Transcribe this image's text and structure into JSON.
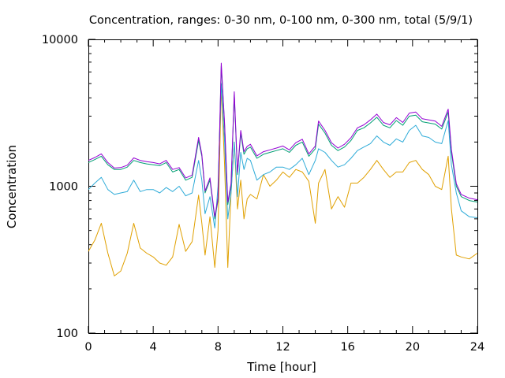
{
  "chart_data": {
    "type": "line",
    "title": "Concentration, ranges: 0-30 nm, 0-100 nm, 0-300 nm, total (5/9/1)",
    "xlabel": "Time [hour]",
    "ylabel": "Concentration",
    "xlim": [
      0,
      24
    ],
    "ylim": [
      100,
      10000
    ],
    "yscale": "log",
    "grid": false,
    "legend": "none",
    "xticks": [
      0,
      4,
      8,
      12,
      16,
      20,
      24
    ],
    "xtick_labels": [
      "0",
      "4",
      "8",
      "12",
      "16",
      "20",
      "24"
    ],
    "yticks": [
      100,
      1000,
      10000
    ],
    "ytick_labels": [
      "100",
      "1000",
      "10000"
    ],
    "series_colors": [
      "#e0a000",
      "#2eabd8",
      "#009e73",
      "#9400d3"
    ],
    "x": [
      0,
      0.4,
      0.8,
      1.2,
      1.6,
      2.0,
      2.4,
      2.8,
      3.2,
      3.6,
      4.0,
      4.4,
      4.8,
      5.2,
      5.6,
      6.0,
      6.4,
      6.8,
      7.0,
      7.2,
      7.5,
      7.8,
      8.0,
      8.2,
      8.4,
      8.6,
      8.8,
      9.0,
      9.2,
      9.4,
      9.6,
      9.8,
      10.0,
      10.4,
      10.8,
      11.2,
      11.6,
      12.0,
      12.4,
      12.8,
      13.2,
      13.6,
      14.0,
      14.2,
      14.6,
      15.0,
      15.4,
      15.8,
      16.2,
      16.6,
      17.0,
      17.4,
      17.8,
      18.2,
      18.6,
      19.0,
      19.4,
      19.8,
      20.2,
      20.6,
      21.0,
      21.4,
      21.8,
      22.2,
      22.4,
      22.7,
      23.0,
      23.5,
      24.0
    ],
    "series": [
      {
        "values": [
          360,
          430,
          560,
          350,
          245,
          265,
          350,
          560,
          380,
          350,
          330,
          300,
          290,
          330,
          550,
          360,
          420,
          870,
          560,
          340,
          620,
          280,
          500,
          4800,
          1400,
          280,
          900,
          2000,
          700,
          1100,
          600,
          820,
          880,
          820,
          1200,
          1000,
          1100,
          1250,
          1150,
          1300,
          1250,
          1080,
          560,
          1050,
          1300,
          700,
          850,
          720,
          1050,
          1050,
          1150,
          1300,
          1500,
          1300,
          1150,
          1250,
          1250,
          1450,
          1500,
          1300,
          1200,
          1000,
          950,
          1600,
          700,
          340,
          330,
          320,
          350
        ]
      },
      {
        "values": [
          950,
          1050,
          1150,
          950,
          880,
          900,
          920,
          1100,
          920,
          950,
          950,
          900,
          980,
          920,
          1000,
          860,
          900,
          1500,
          1100,
          650,
          850,
          520,
          1000,
          5000,
          2000,
          600,
          900,
          2000,
          850,
          1700,
          1300,
          1550,
          1500,
          1100,
          1200,
          1250,
          1350,
          1350,
          1300,
          1400,
          1550,
          1200,
          1500,
          1800,
          1700,
          1500,
          1350,
          1400,
          1550,
          1750,
          1850,
          1950,
          2200,
          2000,
          1900,
          2100,
          2000,
          2400,
          2600,
          2200,
          2150,
          2000,
          1950,
          2800,
          1400,
          900,
          680,
          620,
          610
        ]
      },
      {
        "values": [
          1450,
          1520,
          1600,
          1400,
          1300,
          1300,
          1350,
          1500,
          1450,
          1420,
          1400,
          1380,
          1450,
          1250,
          1300,
          1100,
          1150,
          2050,
          1600,
          900,
          1100,
          600,
          800,
          6600,
          2600,
          750,
          1000,
          4200,
          1200,
          2300,
          1650,
          1800,
          1850,
          1550,
          1650,
          1700,
          1750,
          1800,
          1700,
          1900,
          2000,
          1600,
          1800,
          2650,
          2300,
          1900,
          1750,
          1850,
          2050,
          2400,
          2500,
          2700,
          2950,
          2600,
          2500,
          2800,
          2600,
          3000,
          3050,
          2750,
          2700,
          2650,
          2450,
          3200,
          1700,
          1000,
          850,
          800,
          780
        ]
      },
      {
        "values": [
          1500,
          1570,
          1660,
          1450,
          1330,
          1340,
          1390,
          1560,
          1500,
          1470,
          1450,
          1420,
          1500,
          1300,
          1340,
          1140,
          1190,
          2150,
          1650,
          930,
          1140,
          620,
          830,
          6900,
          2700,
          780,
          1040,
          4400,
          1240,
          2400,
          1720,
          1870,
          1930,
          1610,
          1720,
          1770,
          1820,
          1880,
          1770,
          1980,
          2090,
          1660,
          1880,
          2780,
          2400,
          1980,
          1820,
          1930,
          2140,
          2500,
          2620,
          2830,
          3100,
          2720,
          2620,
          2930,
          2720,
          3150,
          3200,
          2880,
          2830,
          2780,
          2560,
          3350,
          1780,
          1040,
          880,
          830,
          810
        ]
      }
    ]
  }
}
